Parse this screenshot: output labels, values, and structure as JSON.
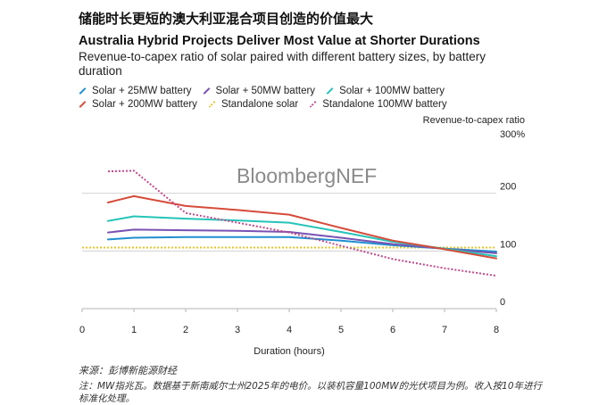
{
  "headline": "储能时长更短的澳大利亚混合项目创造的价值最大",
  "footer": {
    "source": "来源：彭博新能源财经",
    "note": "注：MW指兆瓦。数据基于新南威尔士州2025年的电价。以装机容量100MW的光伏项目为例。收入按10年进行标准化处理。"
  },
  "chart_data": {
    "type": "line",
    "title": "Australia Hybrid Projects Deliver Most Value at Shorter Durations",
    "subtitle": "Revenue-to-capex ratio of solar paired with different battery sizes, by battery duration",
    "watermark": "BloombergNEF",
    "xlabel": "Duration (hours)",
    "ylabel": "Revenue-to-capex ratio",
    "xlim": [
      0,
      8
    ],
    "ylim": [
      0,
      300
    ],
    "x_ticks": [
      "0",
      "1",
      "2",
      "3",
      "4",
      "5",
      "6",
      "7",
      "8"
    ],
    "y_ticks": [
      {
        "value": 0,
        "label": "0"
      },
      {
        "value": 100,
        "label": "100"
      },
      {
        "value": 200,
        "label": "200"
      },
      {
        "value": 300,
        "label": "300%"
      }
    ],
    "legend_position": "top",
    "series": [
      {
        "name": "Solar + 25MW battery",
        "color": "#1f8fd0",
        "style": "solid",
        "x": [
          0.5,
          1,
          2,
          3,
          4,
          5,
          6,
          7,
          8
        ],
        "y": [
          120,
          123,
          124,
          124,
          124,
          118,
          110,
          104,
          99
        ]
      },
      {
        "name": "Solar + 50MW battery",
        "color": "#7a52b3",
        "style": "solid",
        "x": [
          0.5,
          1,
          2,
          3,
          4,
          5,
          6,
          7,
          8
        ],
        "y": [
          132,
          137,
          136,
          135,
          133,
          123,
          112,
          104,
          96
        ]
      },
      {
        "name": "Solar + 100MW battery",
        "color": "#25c4b8",
        "style": "solid",
        "x": [
          0.5,
          1,
          2,
          3,
          4,
          5,
          6,
          7,
          8
        ],
        "y": [
          152,
          160,
          156,
          153,
          149,
          133,
          116,
          104,
          91
        ]
      },
      {
        "name": "Solar + 200MW battery",
        "color": "#d64b3a",
        "style": "solid",
        "x": [
          0.5,
          1,
          2,
          3,
          4,
          5,
          6,
          7,
          8
        ],
        "y": [
          184,
          195,
          178,
          171,
          163,
          140,
          118,
          103,
          87
        ]
      },
      {
        "name": "Standalone solar",
        "color": "#e6c62b",
        "style": "dotted",
        "x": [
          0,
          8
        ],
        "y": [
          106,
          106
        ]
      },
      {
        "name": "Standalone 100MW battery",
        "color": "#c24a88",
        "style": "dotted",
        "x": [
          0.5,
          1,
          2,
          3,
          4,
          5,
          6,
          7,
          8
        ],
        "y": [
          238,
          239,
          166,
          149,
          132,
          109,
          86,
          70,
          57
        ]
      }
    ]
  }
}
